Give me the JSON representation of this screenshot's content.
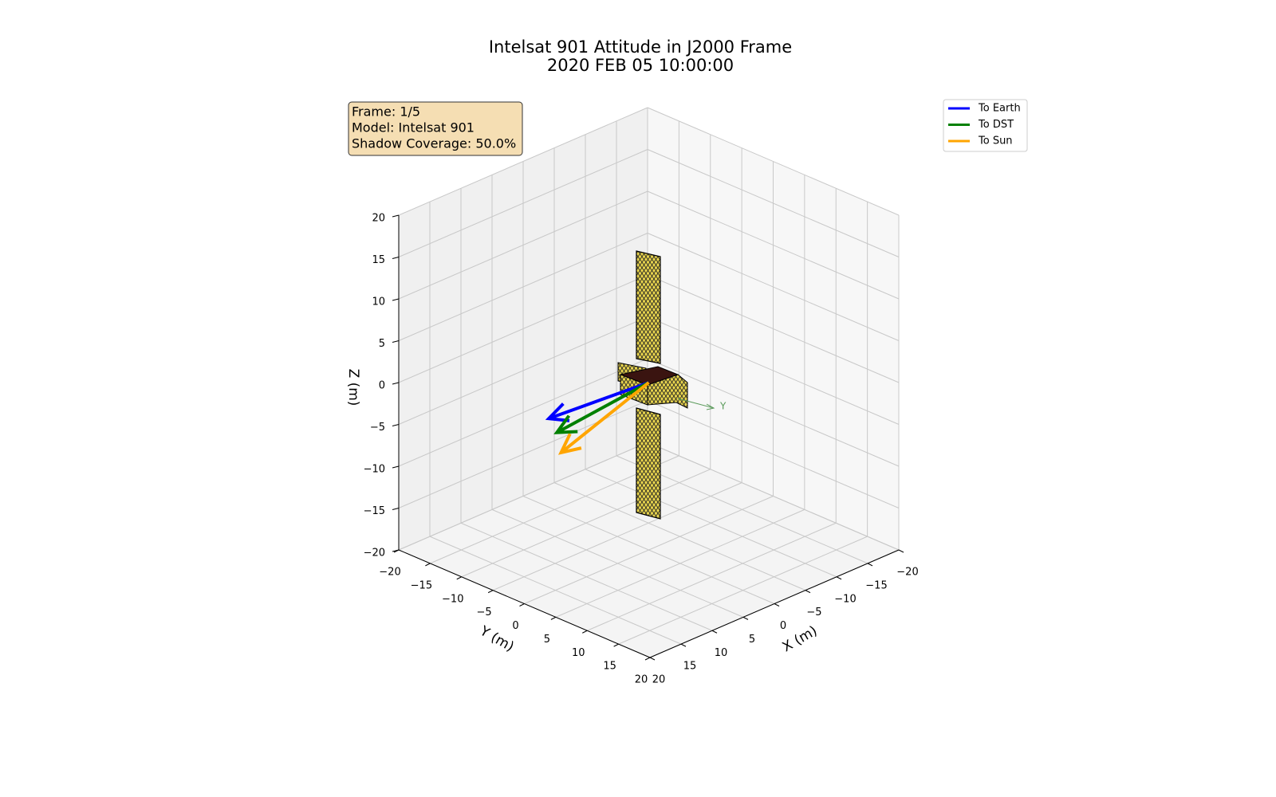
{
  "chart_data": {
    "type": "3d-vectors",
    "title": [
      "Intelsat 901 Attitude in J2000 Frame",
      "2020 FEB 05 10:00:00"
    ],
    "info_box": [
      "Frame: 1/5",
      "Model: Intelsat 901",
      "Shadow Coverage: 50.0%"
    ],
    "xlabel": "X (m)",
    "ylabel": "Y (m)",
    "zlabel": "Z (m)",
    "xlim": [
      -20,
      20
    ],
    "ylim": [
      -20,
      20
    ],
    "zlim": [
      -20,
      20
    ],
    "xticks": [
      {
        "value": -20,
        "label": "−20"
      },
      {
        "value": -15,
        "label": "−15"
      },
      {
        "value": -10,
        "label": "−10"
      },
      {
        "value": -5,
        "label": "−5"
      },
      0,
      5,
      10,
      15,
      20
    ],
    "yticks": [
      {
        "value": -20,
        "label": "−20"
      },
      {
        "value": -15,
        "label": "−15"
      },
      {
        "value": -10,
        "label": "−10"
      },
      {
        "value": -5,
        "label": "−5"
      },
      0,
      5,
      10,
      15,
      20
    ],
    "zticks": [
      {
        "value": -20,
        "label": "−20"
      },
      {
        "value": -15,
        "label": "−15"
      },
      {
        "value": -10,
        "label": "−10"
      },
      {
        "value": -5,
        "label": "−5"
      },
      0,
      5,
      10,
      15,
      20
    ],
    "series": [
      {
        "name": "To Earth",
        "color": "#0000ff",
        "values": [
          8,
          -8,
          -4.3
        ]
      },
      {
        "name": "To DST",
        "color": "#008000",
        "values": [
          7,
          -7.7,
          -6.2
        ]
      },
      {
        "name": "To Sun",
        "color": "#ffa500",
        "values": [
          4,
          -10,
          -10.3
        ]
      }
    ],
    "body_axis_label": "Y",
    "legend": "upper right",
    "grid": true
  }
}
